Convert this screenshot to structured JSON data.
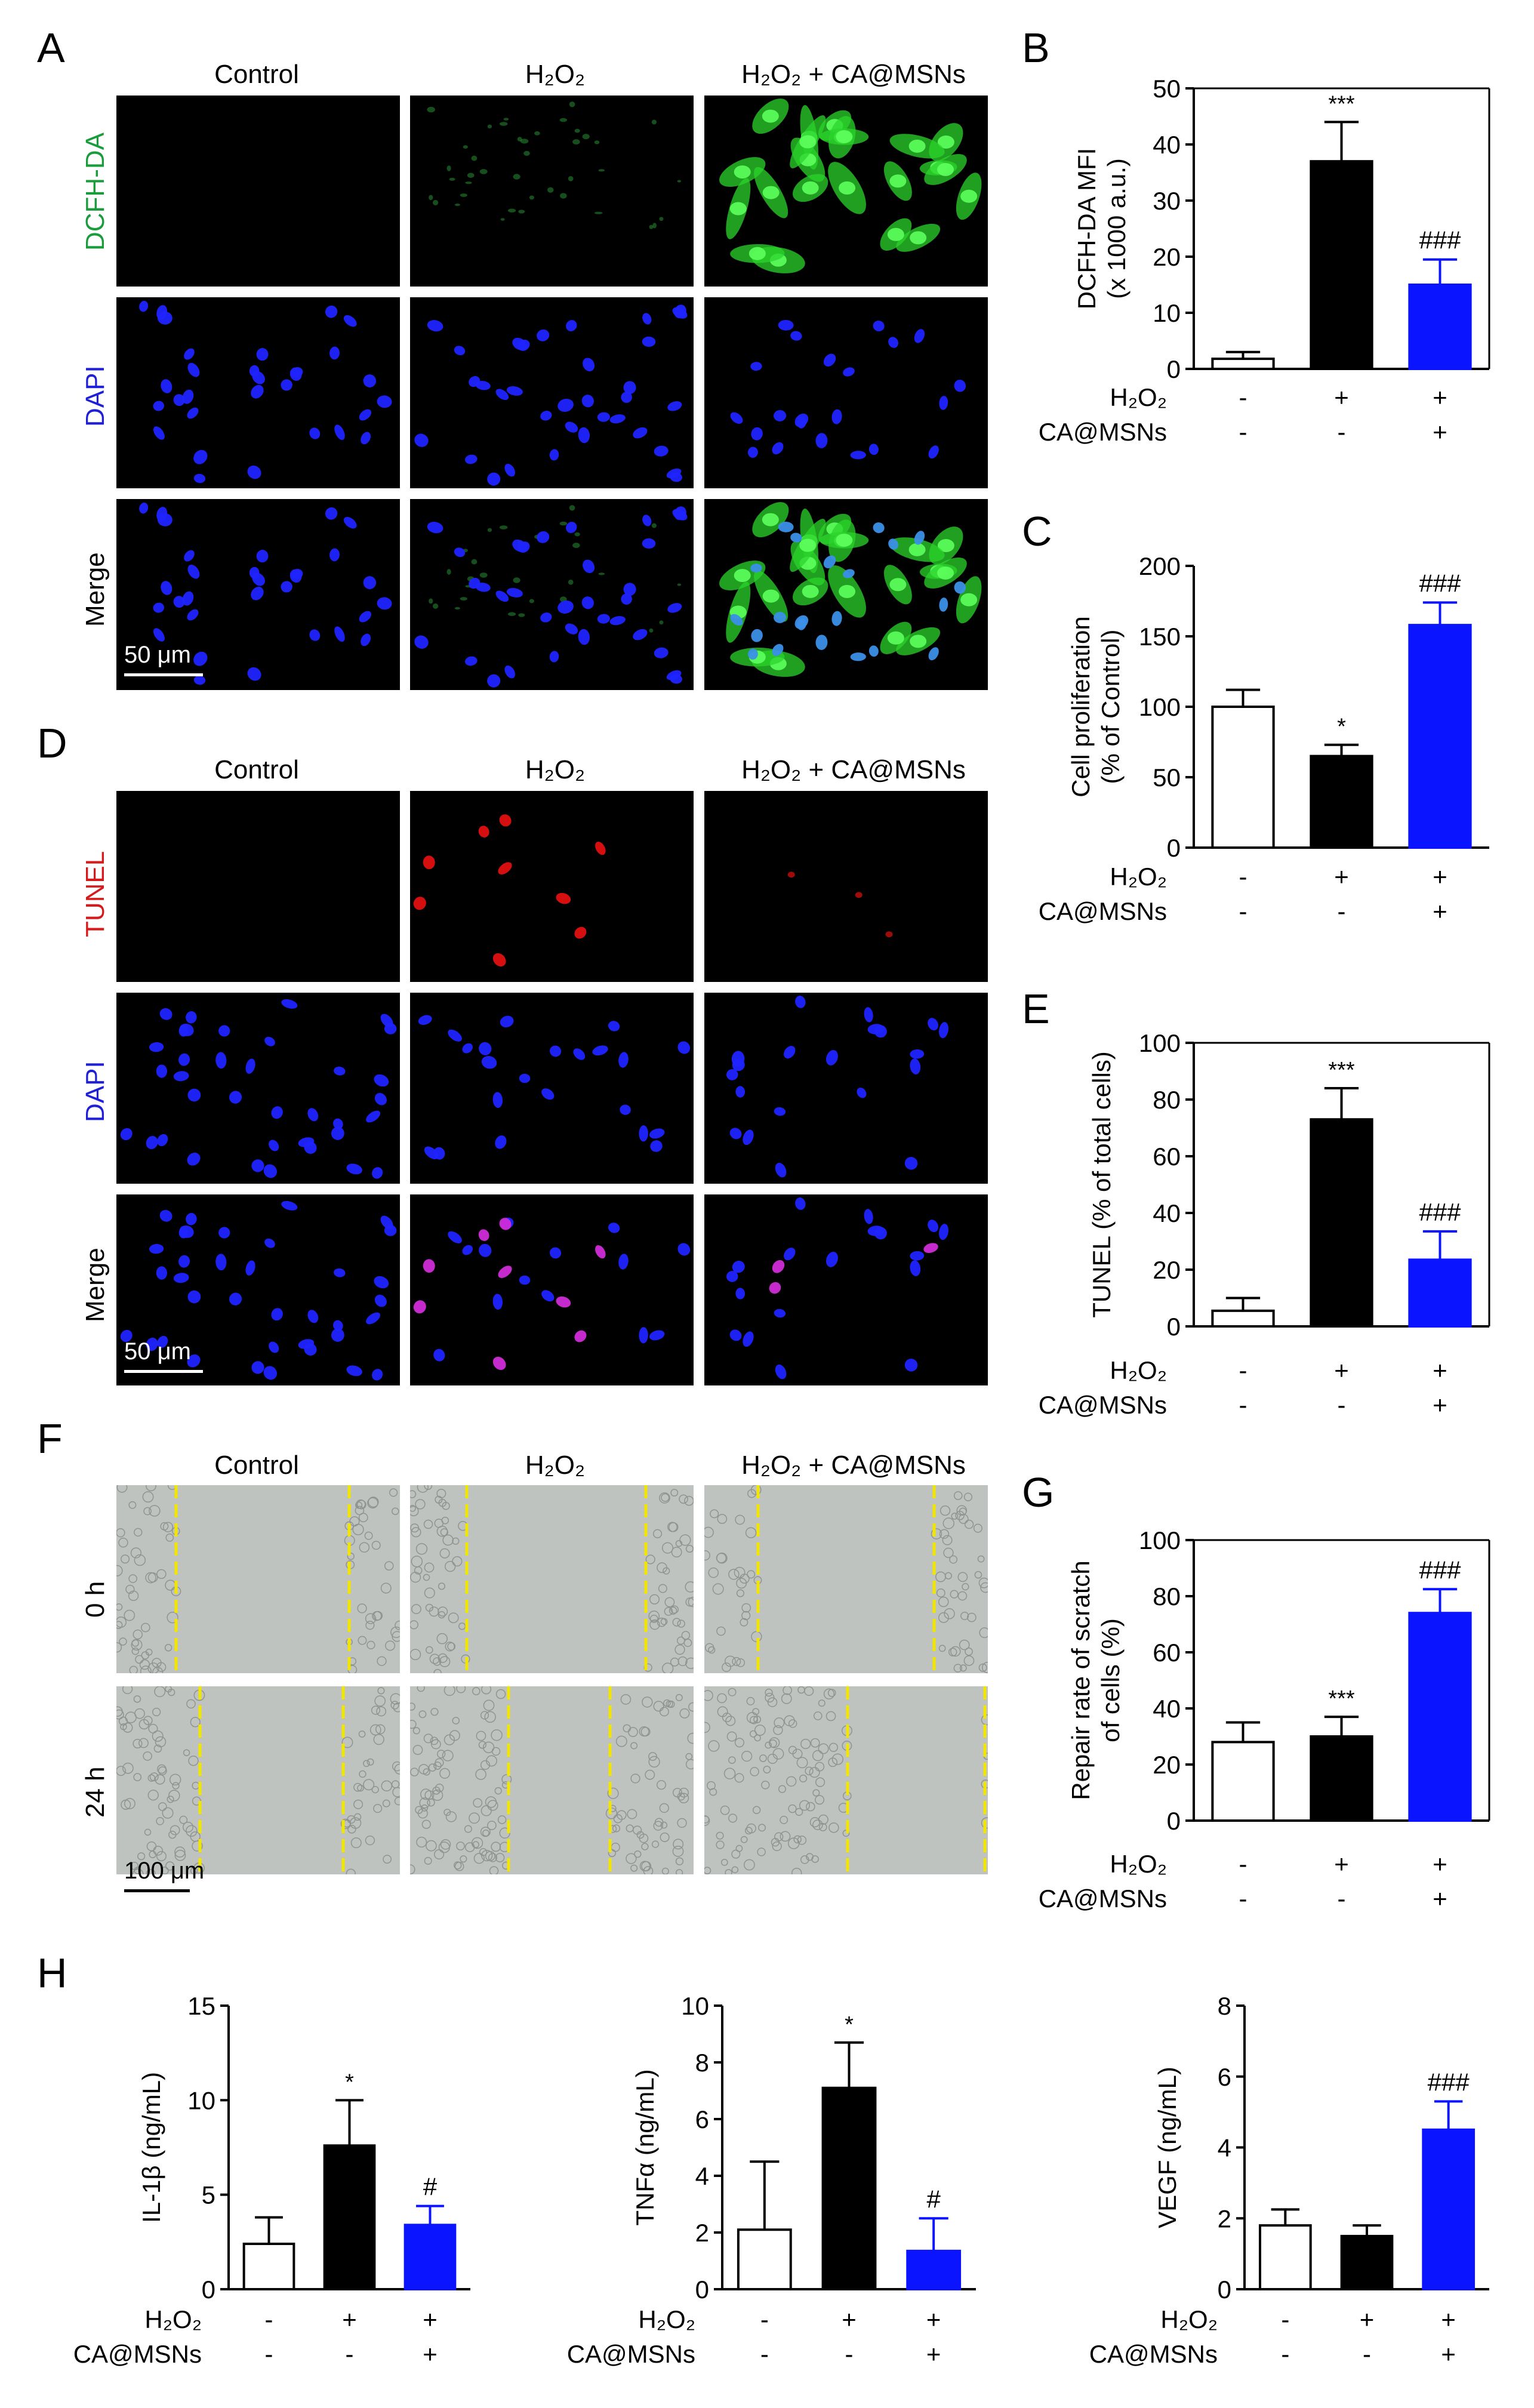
{
  "letters": {
    "A": "A",
    "B": "B",
    "C": "C",
    "D": "D",
    "E": "E",
    "F": "F",
    "G": "G",
    "H": "H"
  },
  "groups": {
    "control": "Control",
    "h2o2": "H₂O₂",
    "h2o2_ca": "H₂O₂ + CA@MSNs"
  },
  "rows": {
    "dcfh": "DCFH-DA",
    "dapi": "DAPI",
    "merge": "Merge",
    "tunel": "TUNEL",
    "t0": "0 h",
    "t24": "24 h"
  },
  "colors": {
    "dcfh": "#1a9b3c",
    "dapi": "#1f1fd6",
    "tunel": "#d41a1a",
    "green_cell": "#2bd42b",
    "blue_nuc": "#1f24ff",
    "red_nuc": "#e01010",
    "magenta_nuc": "#d02cd8",
    "scratch_line": "#f2e600",
    "bar_black": "#000000",
    "bar_blue": "#0a14ff",
    "bar_white": "#ffffff"
  },
  "scalebars": {
    "fluor": "50 μm",
    "scratch": "100 μm"
  },
  "treat": {
    "h2o2": "H₂O₂",
    "ca": "CA@MSNs",
    "h2o2_signs": [
      "-",
      "+",
      "+"
    ],
    "ca_signs": [
      "-",
      "-",
      "+"
    ]
  },
  "chart_data": [
    {
      "id": "B",
      "type": "bar",
      "ylabel": [
        "DCFH-DA MFI",
        "(x 1000 a.u.)"
      ],
      "ylim": [
        0,
        50
      ],
      "yticks": [
        0,
        10,
        20,
        30,
        40,
        50
      ],
      "values": [
        1.8,
        37,
        15
      ],
      "errors": [
        1.2,
        7,
        4.5
      ],
      "annot": [
        "",
        "***",
        "###"
      ]
    },
    {
      "id": "C",
      "type": "bar",
      "ylabel": [
        "Cell proliferation",
        "(% of Control)"
      ],
      "ylim": [
        0,
        200
      ],
      "yticks": [
        0,
        50,
        100,
        150,
        200
      ],
      "values": [
        100,
        65,
        158
      ],
      "errors": [
        12,
        8,
        16
      ],
      "annot": [
        "",
        "*",
        "###"
      ]
    },
    {
      "id": "E",
      "type": "bar",
      "ylabel": [
        "TUNEL (% of total cells)"
      ],
      "ylim": [
        0,
        100
      ],
      "yticks": [
        0,
        20,
        40,
        60,
        80,
        100
      ],
      "values": [
        5.5,
        73,
        23.5
      ],
      "errors": [
        4.5,
        11,
        10
      ],
      "annot": [
        "",
        "***",
        "###"
      ]
    },
    {
      "id": "G",
      "type": "bar",
      "ylabel": [
        "Repair rate of scratch",
        "of cells (%)"
      ],
      "ylim": [
        0,
        100
      ],
      "yticks": [
        0,
        20,
        40,
        60,
        80,
        100
      ],
      "values": [
        28,
        30,
        74
      ],
      "errors": [
        7,
        7,
        8.5
      ],
      "annot": [
        "",
        "***",
        "###"
      ]
    },
    {
      "id": "H1",
      "type": "bar",
      "ylabel": [
        "IL-1β (ng/mL)"
      ],
      "ylim": [
        0,
        15
      ],
      "yticks": [
        0,
        5,
        10,
        15
      ],
      "values": [
        2.4,
        7.6,
        3.4
      ],
      "errors": [
        1.4,
        2.4,
        1.0
      ],
      "annot": [
        "",
        "*",
        "#"
      ]
    },
    {
      "id": "H2",
      "type": "bar",
      "ylabel": [
        "TNFα (ng/mL)"
      ],
      "ylim": [
        0,
        10
      ],
      "yticks": [
        0,
        2,
        4,
        6,
        8,
        10
      ],
      "values": [
        2.1,
        7.1,
        1.35
      ],
      "errors": [
        2.4,
        1.6,
        1.15
      ],
      "annot": [
        "",
        "*",
        "#"
      ]
    },
    {
      "id": "H3",
      "type": "bar",
      "ylabel": [
        "VEGF (ng/mL)"
      ],
      "ylim": [
        0,
        8
      ],
      "yticks": [
        0,
        2,
        4,
        6,
        8
      ],
      "values": [
        1.8,
        1.5,
        4.5
      ],
      "errors": [
        0.45,
        0.3,
        0.8
      ],
      "annot": [
        "",
        "",
        "###"
      ]
    }
  ]
}
